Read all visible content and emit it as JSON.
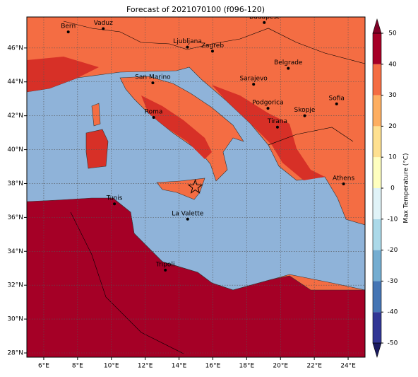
{
  "title": "Forecast of 2021070100 (f096-120)",
  "map": {
    "xlim": [
      5,
      25
    ],
    "ylim": [
      27.75,
      47.83
    ],
    "xticks": [
      {
        "value": 6,
        "label": "6°E"
      },
      {
        "value": 8,
        "label": "8°E"
      },
      {
        "value": 10,
        "label": "10°E"
      },
      {
        "value": 12,
        "label": "12°E"
      },
      {
        "value": 14,
        "label": "14°E"
      },
      {
        "value": 16,
        "label": "16°E"
      },
      {
        "value": 18,
        "label": "18°E"
      },
      {
        "value": 20,
        "label": "20°E"
      },
      {
        "value": 22,
        "label": "22°E"
      },
      {
        "value": 24,
        "label": "24°E"
      }
    ],
    "yticks": [
      {
        "value": 28,
        "label": "28°N"
      },
      {
        "value": 30,
        "label": "30°N"
      },
      {
        "value": 32,
        "label": "32°N"
      },
      {
        "value": 34,
        "label": "34°N"
      },
      {
        "value": 36,
        "label": "36°N"
      },
      {
        "value": 38,
        "label": "38°N"
      },
      {
        "value": 40,
        "label": "40°N"
      },
      {
        "value": 42,
        "label": "42°N"
      },
      {
        "value": 44,
        "label": "44°N"
      },
      {
        "value": 46,
        "label": "46°N"
      }
    ],
    "grid": true,
    "cities": [
      {
        "name": "Bern",
        "lon": 7.45,
        "lat": 46.95
      },
      {
        "name": "Vaduz",
        "lon": 9.52,
        "lat": 47.14
      },
      {
        "name": "Budapest",
        "lon": 19.04,
        "lat": 47.5
      },
      {
        "name": "Ljubljana",
        "lon": 14.5,
        "lat": 46.05
      },
      {
        "name": "Zagreb",
        "lon": 15.98,
        "lat": 45.81
      },
      {
        "name": "San Marino",
        "lon": 12.45,
        "lat": 43.94
      },
      {
        "name": "Belgrade",
        "lon": 20.46,
        "lat": 44.8
      },
      {
        "name": "Sarajevo",
        "lon": 18.41,
        "lat": 43.86
      },
      {
        "name": "Sofia",
        "lon": 23.32,
        "lat": 42.7
      },
      {
        "name": "Podgorica",
        "lon": 19.26,
        "lat": 42.44
      },
      {
        "name": "Skopje",
        "lon": 21.43,
        "lat": 42.0
      },
      {
        "name": "Roma",
        "lon": 12.5,
        "lat": 41.9
      },
      {
        "name": "Tirana",
        "lon": 19.82,
        "lat": 41.33
      },
      {
        "name": "Athens",
        "lon": 23.73,
        "lat": 37.98
      },
      {
        "name": "Tunis",
        "lon": 10.18,
        "lat": 36.8
      },
      {
        "name": "La Valette",
        "lon": 14.51,
        "lat": 35.9
      },
      {
        "name": "Tripoli",
        "lon": 13.19,
        "lat": 32.89
      }
    ],
    "marker": {
      "lon": 14.96,
      "lat": 37.79
    }
  },
  "colorbar": {
    "label": "Max Temperature (°C)",
    "ticks": [
      -50,
      -40,
      -30,
      -20,
      -10,
      0,
      10,
      20,
      30,
      40,
      50
    ],
    "colors": [
      "#313695",
      "#4575b4",
      "#74add1",
      "#abd9e9",
      "#e0f3f8",
      "#ffffbf",
      "#fee090",
      "#fdae61",
      "#f46d43",
      "#a50026"
    ]
  }
}
